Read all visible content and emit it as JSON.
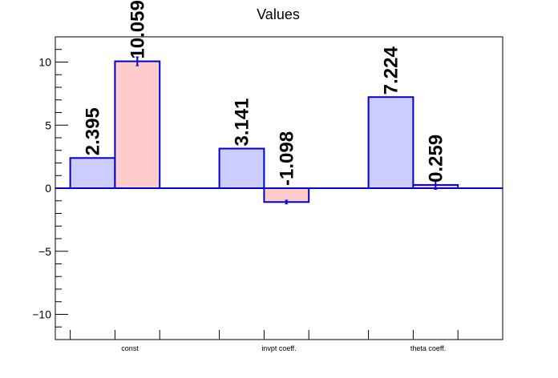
{
  "chart_data": {
    "type": "bar",
    "title": "Values",
    "xlabel": "",
    "ylabel": "",
    "ylim": [
      -12,
      12
    ],
    "y_ticks": [
      -10,
      -5,
      0,
      5,
      10
    ],
    "categories": [
      "const",
      "invpt coeff.",
      "theta coeff."
    ],
    "series": [
      {
        "values": [
          2.395,
          3.141,
          7.224
        ],
        "labels": [
          "2.395",
          "3.141",
          "7.224"
        ],
        "errors": [
          0,
          0,
          0
        ],
        "fill": "#ccccff",
        "stroke": "#0000cc"
      },
      {
        "values": [
          10.059,
          -1.098,
          0.259
        ],
        "labels": [
          "10.059",
          "-1.098",
          "0.259"
        ],
        "errors": [
          0.35,
          0.15,
          0.35
        ],
        "fill": "#ffcccc",
        "stroke": "#0000cc"
      }
    ],
    "grid": false,
    "legend": "none"
  }
}
